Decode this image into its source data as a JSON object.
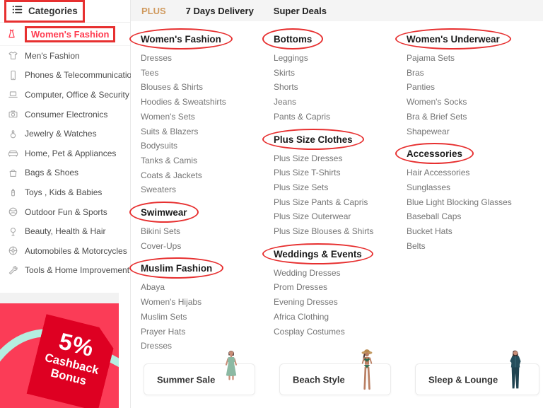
{
  "annotation": {
    "color": "#e73030"
  },
  "sidebar": {
    "header": {
      "label": "Categories",
      "icon": "hamburger-icon",
      "boxed": true
    },
    "items": [
      {
        "label": "Women's Fashion",
        "icon": "dress-icon",
        "selected": true,
        "boxed": true
      },
      {
        "label": "Men's Fashion",
        "icon": "tshirt-icon"
      },
      {
        "label": "Phones & Telecommunications",
        "icon": "phone-icon"
      },
      {
        "label": "Computer, Office & Security",
        "icon": "laptop-icon"
      },
      {
        "label": "Consumer Electronics",
        "icon": "camera-icon"
      },
      {
        "label": "Jewelry & Watches",
        "icon": "perfume-icon"
      },
      {
        "label": "Home, Pet & Appliances",
        "icon": "sofa-icon"
      },
      {
        "label": "Bags & Shoes",
        "icon": "bag-icon"
      },
      {
        "label": "Toys , Kids & Babies",
        "icon": "baby-bottle-icon"
      },
      {
        "label": "Outdoor Fun & Sports",
        "icon": "ball-icon"
      },
      {
        "label": "Beauty, Health & Hair",
        "icon": "mirror-icon"
      },
      {
        "label": "Automobiles & Motorcycles",
        "icon": "wheel-icon"
      },
      {
        "label": "Tools & Home Improvement",
        "icon": "wrench-icon"
      }
    ],
    "promo": {
      "percent": "5%",
      "line1": "Cashback",
      "line2": "Bonus",
      "bg_color": "#fb3c57",
      "tag_color": "#de0022",
      "swoosh_color": "#b5eee0"
    }
  },
  "tabs": [
    {
      "label": "PLUS",
      "accent": true,
      "accent_color": "#d09a5e"
    },
    {
      "label": "7 Days Delivery"
    },
    {
      "label": "Super Deals"
    }
  ],
  "columns": [
    {
      "sections": [
        {
          "title": "Women's Fashion",
          "circled": true,
          "items": [
            "Dresses",
            "Tees",
            "Blouses & Shirts",
            "Hoodies & Sweatshirts",
            "Women's Sets",
            "Suits & Blazers",
            "Bodysuits",
            "Tanks & Camis",
            "Coats & Jackets",
            "Sweaters"
          ]
        },
        {
          "title": "Swimwear",
          "circled": true,
          "items": [
            "Bikini Sets",
            "Cover-Ups"
          ]
        },
        {
          "title": "Muslim Fashion",
          "circled": true,
          "items": [
            "Abaya",
            "Women's Hijabs",
            "Muslim Sets",
            "Prayer Hats",
            "Dresses"
          ]
        }
      ]
    },
    {
      "sections": [
        {
          "title": "Bottoms",
          "circled": true,
          "items": [
            "Leggings",
            "Skirts",
            "Shorts",
            "Jeans",
            "Pants & Capris"
          ]
        },
        {
          "title": "Plus Size Clothes",
          "circled": true,
          "items": [
            "Plus Size Dresses",
            "Plus Size T-Shirts",
            "Plus Size Sets",
            "Plus Size Pants & Capris",
            "Plus Size Outerwear",
            "Plus Size Blouses & Shirts"
          ]
        },
        {
          "title": "Weddings & Events",
          "circled": true,
          "items": [
            "Wedding Dresses",
            "Prom Dresses",
            "Evening Dresses",
            "Africa Clothing",
            "Cosplay Costumes"
          ]
        }
      ]
    },
    {
      "sections": [
        {
          "title": "Women's Underwear",
          "circled": true,
          "items": [
            "Pajama Sets",
            "Bras",
            "Panties",
            "Women's Socks",
            "Bra & Brief Sets",
            "Shapewear"
          ]
        },
        {
          "title": "Accessories",
          "circled": true,
          "items": [
            "Hair Accessories",
            "Sunglasses",
            "Blue Light Blocking Glasses",
            "Baseball Caps",
            "Bucket Hats",
            "Belts"
          ]
        }
      ]
    }
  ],
  "cards": [
    {
      "label": "Summer Sale",
      "image": "dress-model"
    },
    {
      "label": "Beach Style",
      "image": "bikini-model"
    },
    {
      "label": "Sleep & Lounge",
      "image": "pajama-model"
    }
  ]
}
